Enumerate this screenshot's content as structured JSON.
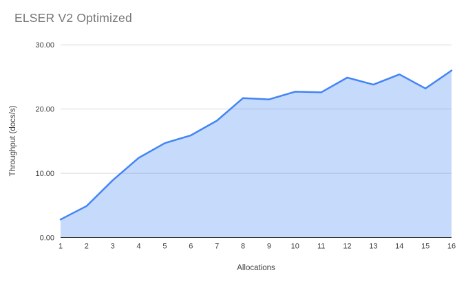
{
  "chart_data": {
    "type": "area",
    "title": "ELSER V2 Optimized",
    "xlabel": "Allocations",
    "ylabel": "Throughput (docs/s)",
    "categories": [
      "1",
      "2",
      "3",
      "4",
      "5",
      "6",
      "7",
      "8",
      "9",
      "10",
      "11",
      "12",
      "13",
      "14",
      "15",
      "16"
    ],
    "series": [
      {
        "name": "Throughput (docs/s)",
        "values": [
          2.8,
          4.9,
          8.9,
          12.4,
          14.7,
          15.9,
          18.2,
          21.7,
          21.5,
          22.7,
          22.6,
          24.9,
          23.8,
          25.4,
          23.2,
          26.0
        ]
      }
    ],
    "ylim": [
      0,
      30
    ],
    "yticks": [
      {
        "value": 0,
        "label": "0.00"
      },
      {
        "value": 10,
        "label": "10.00"
      },
      {
        "value": 20,
        "label": "20.00"
      },
      {
        "value": 30,
        "label": "30.00"
      }
    ],
    "grid": true,
    "legend_position": "none",
    "colors": {
      "line": "#4285f4",
      "fill": "rgba(66,133,244,0.3)",
      "grid": "#d9d9d9",
      "axis_line": "#333333",
      "tick_label": "#3c3c3c",
      "title": "#757575",
      "axis_title": "#424242",
      "background": "#ffffff"
    }
  }
}
